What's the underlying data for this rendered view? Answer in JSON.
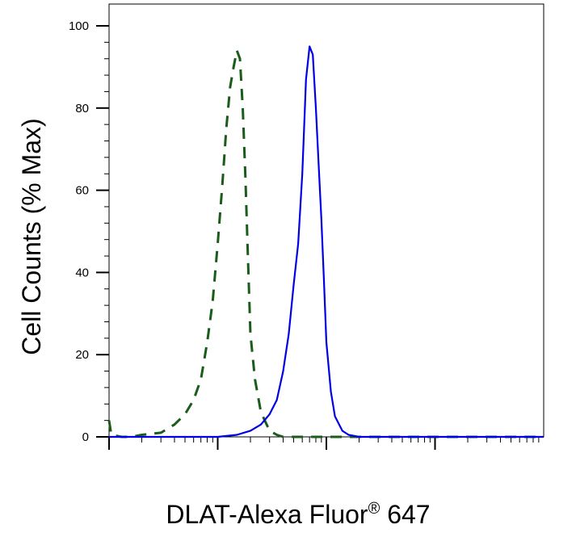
{
  "chart_data": {
    "type": "line",
    "xlabel": "DLAT-Alexa Fluor",
    "xlabel_sup": "®",
    "xlabel_suffix": " 647",
    "ylabel": "Cell Counts (% Max)",
    "x_scale": "log",
    "xlim": [
      1,
      10000
    ],
    "ylim": [
      0,
      100
    ],
    "x_decade_ticks": [
      1,
      10,
      100,
      1000
    ],
    "y_ticks": [
      0,
      20,
      40,
      60,
      80,
      100
    ],
    "y_tick_labels": [
      "0",
      "20",
      "40",
      "60",
      "80",
      "100"
    ],
    "grid": false,
    "legend": "none",
    "series": [
      {
        "style": "dashed",
        "color": "#1a5c1a",
        "x": [
          1,
          1.05,
          1.3,
          1.6,
          2,
          3,
          4,
          5,
          6,
          7,
          8,
          9,
          10,
          11,
          12,
          13,
          14,
          15,
          16,
          17,
          18,
          19,
          20,
          22,
          25,
          30,
          35,
          40,
          50,
          60,
          100,
          10000
        ],
        "y": [
          4,
          0.5,
          0,
          0,
          0.5,
          1,
          3,
          5.5,
          9,
          14,
          23,
          33,
          47,
          61,
          75,
          85,
          90,
          94,
          92,
          80,
          63,
          43,
          25,
          14,
          6,
          1.5,
          0.5,
          0,
          0,
          0,
          0,
          0
        ]
      },
      {
        "style": "solid",
        "color": "#0000e6",
        "x": [
          1,
          5,
          10,
          15,
          20,
          25,
          30,
          35,
          40,
          45,
          50,
          55,
          60,
          65,
          70,
          75,
          80,
          85,
          90,
          95,
          100,
          110,
          120,
          140,
          160,
          200,
          1000,
          10000
        ],
        "y": [
          0,
          0,
          0,
          0.5,
          1.5,
          3,
          5.5,
          9,
          16,
          25,
          37,
          47,
          64,
          87,
          95,
          93,
          80,
          66,
          53,
          38,
          23,
          11,
          5,
          1.5,
          0.5,
          0,
          0,
          0
        ]
      }
    ]
  }
}
